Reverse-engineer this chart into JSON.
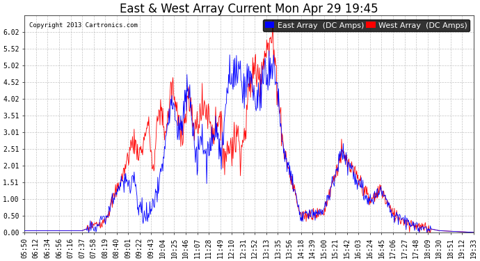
{
  "title": "East & West Array Current Mon Apr 29 19:45",
  "copyright": "Copyright 2013 Cartronics.com",
  "legend_east": "East Array  (DC Amps)",
  "legend_west": "West Array  (DC Amps)",
  "east_color": "#0000ff",
  "west_color": "#ff0000",
  "background_color": "#ffffff",
  "plot_bg_color": "#ffffff",
  "grid_color": "#aaaaaa",
  "ylim": [
    0.0,
    6.52
  ],
  "yticks": [
    0.0,
    0.5,
    1.0,
    1.51,
    2.01,
    2.51,
    3.01,
    3.51,
    4.02,
    4.52,
    5.02,
    5.52,
    6.02
  ],
  "title_fontsize": 12,
  "tick_fontsize": 7,
  "legend_fontsize": 8,
  "xtick_labels": [
    "05:50",
    "06:12",
    "06:34",
    "06:56",
    "07:16",
    "07:37",
    "07:58",
    "08:19",
    "08:40",
    "09:01",
    "09:22",
    "09:43",
    "10:04",
    "10:25",
    "10:46",
    "11:07",
    "11:28",
    "11:49",
    "12:10",
    "12:31",
    "12:52",
    "13:13",
    "13:35",
    "13:56",
    "14:18",
    "14:39",
    "15:00",
    "15:21",
    "15:42",
    "16:03",
    "16:24",
    "16:45",
    "17:06",
    "17:27",
    "17:48",
    "18:09",
    "18:30",
    "18:51",
    "19:12",
    "19:33"
  ]
}
